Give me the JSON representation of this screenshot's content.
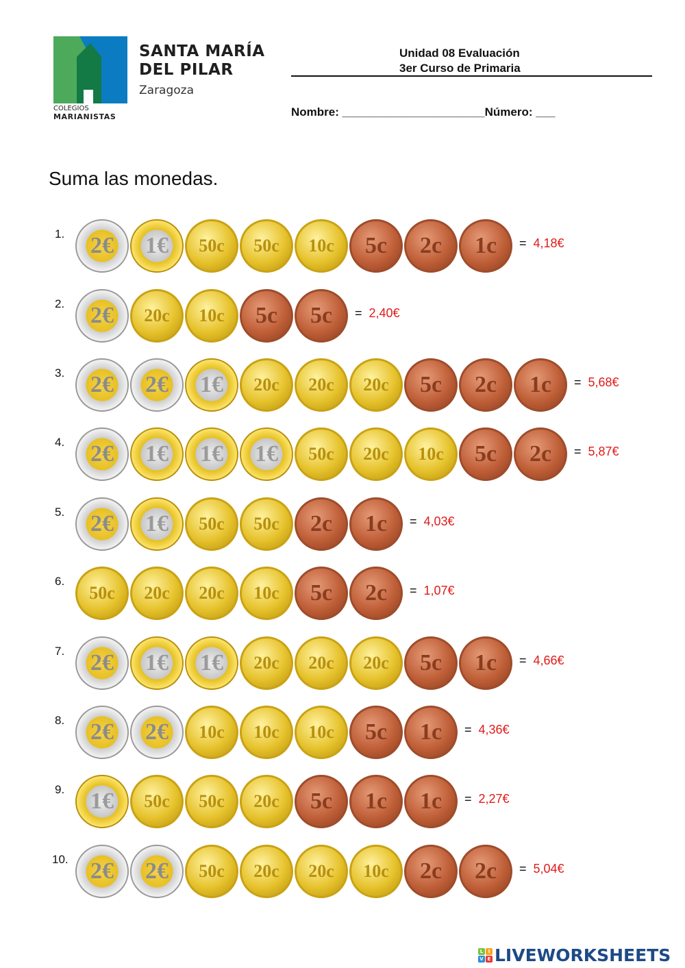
{
  "header": {
    "school_line1": "SANTA MARÍA",
    "school_line2": "DEL PILAR",
    "city": "Zaragoza",
    "org_line1": "COLEGIOS",
    "org_line2": "MARIANISTAS",
    "title": "Unidad 08 Evaluación",
    "subtitle": "3er Curso de Primaria",
    "name_label": "Nombre: ______________________",
    "number_label": "Número: ___"
  },
  "instruction": "Suma las monedas.",
  "colors": {
    "answer": "#e01b1b",
    "brand": "#1d4a86"
  },
  "exercises": [
    {
      "number": "1.",
      "coins": [
        "2€",
        "1€",
        "50c",
        "50c",
        "10c",
        "5c",
        "2c",
        "1c"
      ],
      "answer": "4,18€"
    },
    {
      "number": "2.",
      "coins": [
        "2€",
        "20c",
        "10c",
        "5c",
        "5c"
      ],
      "answer": "2,40€"
    },
    {
      "number": "3.",
      "coins": [
        "2€",
        "2€",
        "1€",
        "20c",
        "20c",
        "20c",
        "5c",
        "2c",
        "1c"
      ],
      "answer": "5,68€"
    },
    {
      "number": "4.",
      "coins": [
        "2€",
        "1€",
        "1€",
        "1€",
        "50c",
        "20c",
        "10c",
        "5c",
        "2c"
      ],
      "answer": "5,87€"
    },
    {
      "number": "5.",
      "coins": [
        "2€",
        "1€",
        "50c",
        "50c",
        "2c",
        "1c"
      ],
      "answer": "4,03€"
    },
    {
      "number": "6.",
      "coins": [
        "50c",
        "20c",
        "20c",
        "10c",
        "5c",
        "2c"
      ],
      "answer": "1,07€"
    },
    {
      "number": "7.",
      "coins": [
        "2€",
        "1€",
        "1€",
        "20c",
        "20c",
        "20c",
        "5c",
        "1c"
      ],
      "answer": "4,66€"
    },
    {
      "number": "8.",
      "coins": [
        "2€",
        "2€",
        "10c",
        "10c",
        "10c",
        "5c",
        "1c"
      ],
      "answer": "4,36€"
    },
    {
      "number": "9.",
      "coins": [
        "1€",
        "50c",
        "50c",
        "20c",
        "5c",
        "1c",
        "1c"
      ],
      "answer": "2,27€"
    },
    {
      "number": "10.",
      "coins": [
        "2€",
        "2€",
        "50c",
        "20c",
        "20c",
        "10c",
        "2c",
        "2c"
      ],
      "answer": "5,04€"
    }
  ],
  "equals_sign": "=",
  "footer": {
    "brand": "LIVEWORKSHEETS"
  }
}
